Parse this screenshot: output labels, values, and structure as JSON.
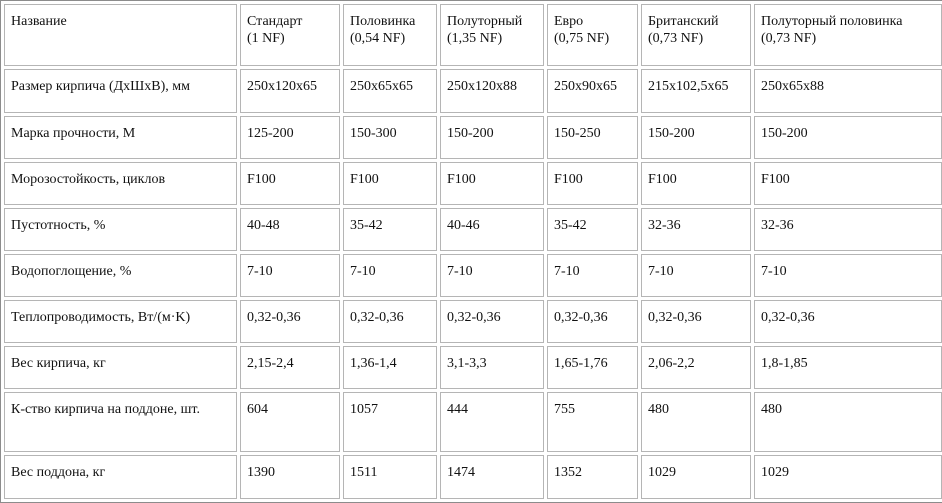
{
  "table": {
    "header": [
      {
        "line1": "Название",
        "line2": ""
      },
      {
        "line1": "Стандарт",
        "line2": "(1 NF)"
      },
      {
        "line1": "Половинка",
        "line2": "(0,54 NF)"
      },
      {
        "line1": "Полуторный",
        "line2": "(1,35 NF)"
      },
      {
        "line1": "Евро",
        "line2": "(0,75 NF)"
      },
      {
        "line1": "Британский",
        "line2": "(0,73 NF)"
      },
      {
        "line1": "Полуторный половинка",
        "line2": "(0,73 NF)"
      }
    ],
    "rows": [
      [
        "Размер кирпича (ДхШхВ), мм",
        "250х120х65",
        "250х65х65",
        "250х120х88",
        "250х90х65",
        "215х102,5х65",
        "250х65х88"
      ],
      [
        "Марка прочности, М",
        "125-200",
        "150-300",
        "150-200",
        "150-250",
        "150-200",
        "150-200"
      ],
      [
        "Морозостойкость, циклов",
        "F100",
        "F100",
        "F100",
        "F100",
        "F100",
        "F100"
      ],
      [
        "Пустотность, %",
        "40-48",
        "35-42",
        "40-46",
        "35-42",
        "32-36",
        "32-36"
      ],
      [
        "Водопоглощение, %",
        "7-10",
        "7-10",
        "7-10",
        "7-10",
        "7-10",
        "7-10"
      ],
      [
        "Теплопроводимость, Вт/(м·K)",
        "0,32-0,36",
        "0,32-0,36",
        "0,32-0,36",
        "0,32-0,36",
        "0,32-0,36",
        "0,32-0,36"
      ],
      [
        "Вес кирпича, кг",
        "2,15-2,4",
        "1,36-1,4",
        "3,1-3,3",
        "1,65-1,76",
        "2,06-2,2",
        "1,8-1,85"
      ],
      [
        "К-ство кирпича на поддоне, шт.",
        "604",
        "1057",
        "444",
        "755",
        "480",
        "480"
      ],
      [
        "Вес поддона, кг",
        "1390",
        "1511",
        "1474",
        "1352",
        "1029",
        "1029"
      ]
    ]
  },
  "colors": {
    "text": "#111111",
    "cell_border": "#b5b5b5",
    "outer_border": "#8c8c8c",
    "background": "#ffffff"
  }
}
